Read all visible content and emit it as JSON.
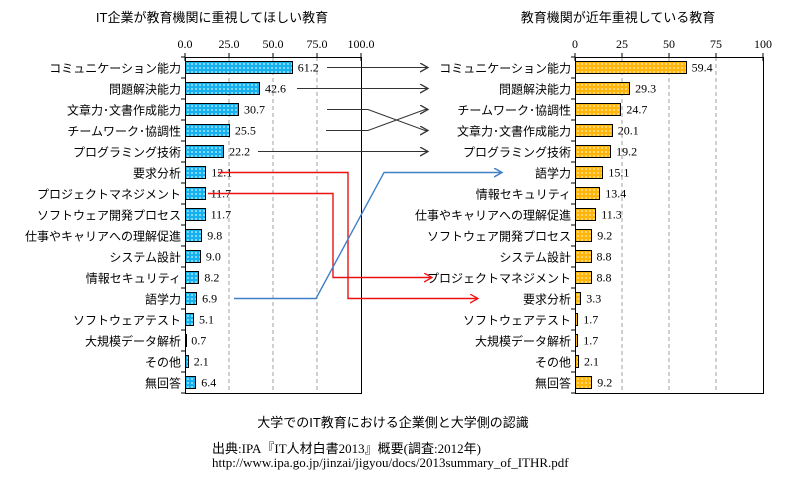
{
  "figure": {
    "caption": "大学でのIT教育における企業側と大学側の認識",
    "source": "出典:IPA『IT人材白書2013』概要(調査:2012年)",
    "source_url": "http://www.ipa.go.jp/jinzai/jigyou/docs/2013summary_of_ITHR.pdf"
  },
  "colors": {
    "left_bar": "#15B2EF",
    "right_bar": "#FFB60A",
    "connector_black": "#333333",
    "connector_red": "#EE1111",
    "connector_blue": "#4080C8",
    "gridline": "#A0A0A0",
    "axis": "#000000"
  },
  "chart_data": [
    {
      "type": "bar",
      "orientation": "horizontal",
      "title": "IT企業が教育機関に重視してほしい教育",
      "xlim": [
        0,
        100
      ],
      "xticks": [
        "0.0",
        "25.0",
        "50.0",
        "75.0",
        "100.0"
      ],
      "grid": "vertical-dashed",
      "bar_color": "#15B2EF",
      "categories": [
        "コミュニケーション能力",
        "問題解決能力",
        "文章力･文書作成能力",
        "チームワーク･協調性",
        "プログラミング技術",
        "要求分析",
        "プロジェクトマネジメント",
        "ソフトウェア開発プロセス",
        "仕事やキャリアへの理解促進",
        "システム設計",
        "情報セキュリティ",
        "語学力",
        "ソフトウェアテスト",
        "大規模データ解析",
        "その他",
        "無回答"
      ],
      "values": [
        61.2,
        42.6,
        30.7,
        25.5,
        22.2,
        12.1,
        11.7,
        11.7,
        9.8,
        9.0,
        8.2,
        6.9,
        5.1,
        0.7,
        2.1,
        6.4
      ]
    },
    {
      "type": "bar",
      "orientation": "horizontal",
      "title": "教育機関が近年重視している教育",
      "xlim": [
        0,
        100
      ],
      "xticks": [
        "0",
        "25",
        "50",
        "75",
        "100"
      ],
      "grid": "vertical-dashed",
      "bar_color": "#FFB60A",
      "categories": [
        "コミュニケーション能力",
        "問題解決能力",
        "チームワーク･協調性",
        "文章力･文書作成能力",
        "プログラミング技術",
        "語学力",
        "情報セキュリティ",
        "仕事やキャリアへの理解促進",
        "ソフトウェア開発プロセス",
        "システム設計",
        "プロジェクトマネジメント",
        "要求分析",
        "ソフトウェアテスト",
        "大規模データ解析",
        "その他",
        "無回答"
      ],
      "values": [
        59.4,
        29.3,
        24.7,
        20.1,
        19.2,
        15.1,
        13.4,
        11.3,
        9.2,
        8.8,
        8.8,
        3.3,
        1.7,
        1.7,
        2.1,
        9.2
      ]
    }
  ],
  "connections": [
    {
      "from": "コミュニケーション能力",
      "to": "コミュニケーション能力",
      "color": "black"
    },
    {
      "from": "問題解決能力",
      "to": "問題解決能力",
      "color": "black"
    },
    {
      "from": "文章力･文書作成能力",
      "to": "文章力･文書作成能力",
      "color": "black"
    },
    {
      "from": "チームワーク･協調性",
      "to": "チームワーク･協調性",
      "color": "black"
    },
    {
      "from": "プログラミング技術",
      "to": "プログラミング技術",
      "color": "black"
    },
    {
      "from": "要求分析",
      "to": "要求分析",
      "color": "red"
    },
    {
      "from": "プロジェクトマネジメント",
      "to": "プロジェクトマネジメント",
      "color": "red"
    },
    {
      "from": "語学力",
      "to": "語学力",
      "color": "blue"
    }
  ]
}
